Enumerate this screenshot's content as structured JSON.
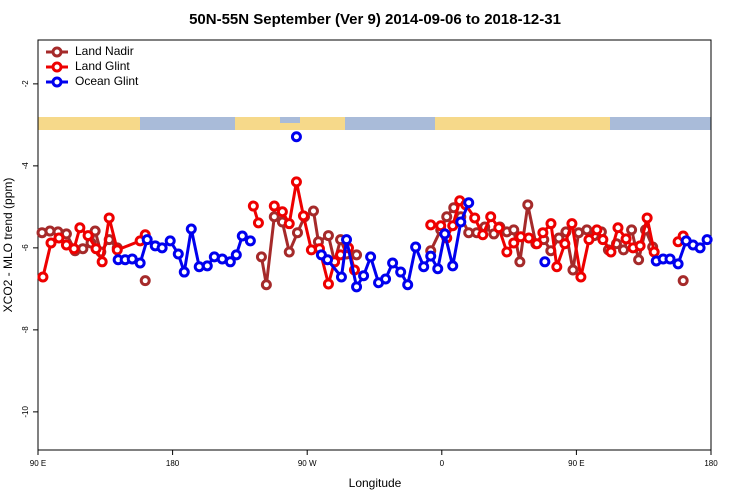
{
  "chart_data": {
    "type": "line",
    "title": "50N-55N September (Ver 9)   2014-09-06 to 2018-12-31",
    "x_label": "Longitude",
    "y_label": "XCO2 - MLO trend (ppm)",
    "xlim": [
      90,
      540
    ],
    "xticks": [
      {
        "value": 90,
        "label": "90 E"
      },
      180,
      {
        "value": 270,
        "label": "90 W"
      },
      {
        "value": 360,
        "label": "0"
      },
      {
        "value": 450,
        "label": "90 E"
      },
      {
        "value": 540,
        "label": "180"
      }
    ],
    "ylim": [
      -10.93,
      -0.93
    ],
    "yticks": [
      -2,
      -4,
      -6,
      -8,
      -10
    ],
    "legend": "upper left",
    "series": [
      {
        "name": "Land Nadir",
        "color": "#a52a2a",
        "x": [
          92.7,
          98,
          103.4,
          109,
          114.8,
          120,
          125.5,
          128.2,
          132,
          137.6,
          143,
          null,
          161.7,
          null,
          239.4,
          242.7,
          248,
          253.4,
          258,
          263.5,
          268.2,
          274.2,
          277.5,
          284.2,
          288.3,
          292.3,
          296.3,
          303,
          null,
          352.6,
          359.3,
          363.3,
          368,
          372.7,
          378,
          383.4,
          388.7,
          394.8,
          398.8,
          403.5,
          408.1,
          412.2,
          417.5,
          422.9,
          428.2,
          432.9,
          438.3,
          443,
          447.7,
          451.5,
          457,
          461.9,
          466.7,
          471.4,
          476.8,
          481.5,
          486.9,
          491.6,
          496.2,
          501,
          null,
          521.4
        ],
        "values": [
          -5.63,
          -5.59,
          -5.61,
          -5.66,
          -6.07,
          -6.02,
          -5.88,
          -5.59,
          -6.1,
          -5.8,
          -6.0,
          null,
          -6.8,
          null,
          -6.22,
          -6.9,
          -5.24,
          -5.37,
          -6.1,
          -5.63,
          -5.24,
          -5.1,
          -5.85,
          -5.7,
          -6.34,
          -5.8,
          -6.15,
          -6.17,
          null,
          -6.07,
          -5.56,
          -5.24,
          -5.02,
          -5.24,
          -5.63,
          -5.63,
          -5.49,
          -5.66,
          -5.49,
          -5.61,
          -5.56,
          -6.34,
          -4.95,
          -5.9,
          -5.8,
          -6.07,
          -5.76,
          -5.61,
          -6.54,
          -5.63,
          -5.56,
          -5.7,
          -5.61,
          -6.05,
          -5.9,
          -6.05,
          -5.56,
          -6.29,
          -5.56,
          -5.98,
          null,
          -6.8
        ]
      },
      {
        "name": "Land Glint",
        "color": "#ee0000",
        "x": [
          93.3,
          98.7,
          104,
          109,
          114.1,
          118,
          123.5,
          128.8,
          132.9,
          137.6,
          143,
          158.3,
          161.7,
          null,
          234,
          237.4,
          null,
          248,
          253.4,
          258,
          262.8,
          267.5,
          272.8,
          278.2,
          284.2,
          288.3,
          292.3,
          297.6,
          301.6,
          null,
          352.6,
          359.3,
          363.3,
          367.3,
          372,
          376,
          382,
          387.4,
          392.7,
          398.1,
          403.5,
          408.1,
          412.8,
          418.2,
          423.6,
          427.6,
          433,
          436.9,
          442.3,
          447,
          453,
          458.4,
          463.7,
          467.7,
          473.1,
          477.8,
          483.2,
          487.9,
          492.6,
          497.3,
          502,
          null,
          518,
          521.4
        ],
        "values": [
          -6.71,
          -5.88,
          -5.76,
          -5.93,
          -6.02,
          -5.51,
          -5.7,
          -6.02,
          -6.34,
          -5.27,
          -6.05,
          -5.83,
          -5.68,
          null,
          -4.98,
          -5.39,
          null,
          -4.98,
          -5.12,
          -5.41,
          -4.39,
          -5.22,
          -6.05,
          -6.02,
          -6.88,
          -6.34,
          -6.17,
          -6.0,
          -6.54,
          null,
          -5.44,
          -5.46,
          -5.76,
          -5.46,
          -4.85,
          -4.95,
          -5.27,
          -5.68,
          -5.24,
          -5.51,
          -6.1,
          -5.88,
          -5.73,
          -5.76,
          -5.9,
          -5.63,
          -5.41,
          -6.46,
          -5.9,
          -5.41,
          -6.71,
          -5.8,
          -5.56,
          -5.8,
          -6.1,
          -5.51,
          -5.78,
          -6.0,
          -5.95,
          -5.27,
          -6.1,
          null,
          -5.85,
          -5.71
        ]
      },
      {
        "name": "Ocean Glint",
        "color": "#0000ee",
        "x": [
          262.8,
          null,
          143.6,
          148.3,
          153,
          158.3,
          163,
          168.4,
          173,
          178.4,
          183.8,
          187.8,
          192.5,
          197.8,
          203.2,
          207.9,
          213.2,
          218.6,
          222.6,
          226.6,
          232,
          null,
          279.5,
          283.6,
          292.9,
          296.3,
          303,
          307.7,
          312.4,
          317.7,
          322.4,
          327.1,
          332.5,
          337.2,
          342.5,
          347.9,
          352.6,
          357.3,
          362,
          367.3,
          372.7,
          378,
          null,
          428.9,
          null,
          503.4,
          508,
          512.6,
          518,
          523.4,
          528,
          532.7,
          537.4
        ],
        "values": [
          -3.29,
          null,
          -6.29,
          -6.29,
          -6.27,
          -6.37,
          -5.8,
          -5.95,
          -6.0,
          -5.83,
          -6.15,
          -6.59,
          -5.54,
          -6.46,
          -6.44,
          -6.22,
          -6.27,
          -6.34,
          -6.17,
          -5.71,
          -5.83,
          null,
          -6.17,
          -6.29,
          -6.71,
          -5.8,
          -6.95,
          -6.68,
          -6.22,
          -6.85,
          -6.76,
          -6.37,
          -6.59,
          -6.9,
          -5.98,
          -6.46,
          -6.2,
          -6.51,
          -5.66,
          -6.44,
          -5.37,
          -4.9,
          null,
          -6.34,
          null,
          -6.32,
          -6.27,
          -6.27,
          -6.39,
          -5.83,
          -5.93,
          -6.0,
          -5.8
        ]
      }
    ]
  }
}
